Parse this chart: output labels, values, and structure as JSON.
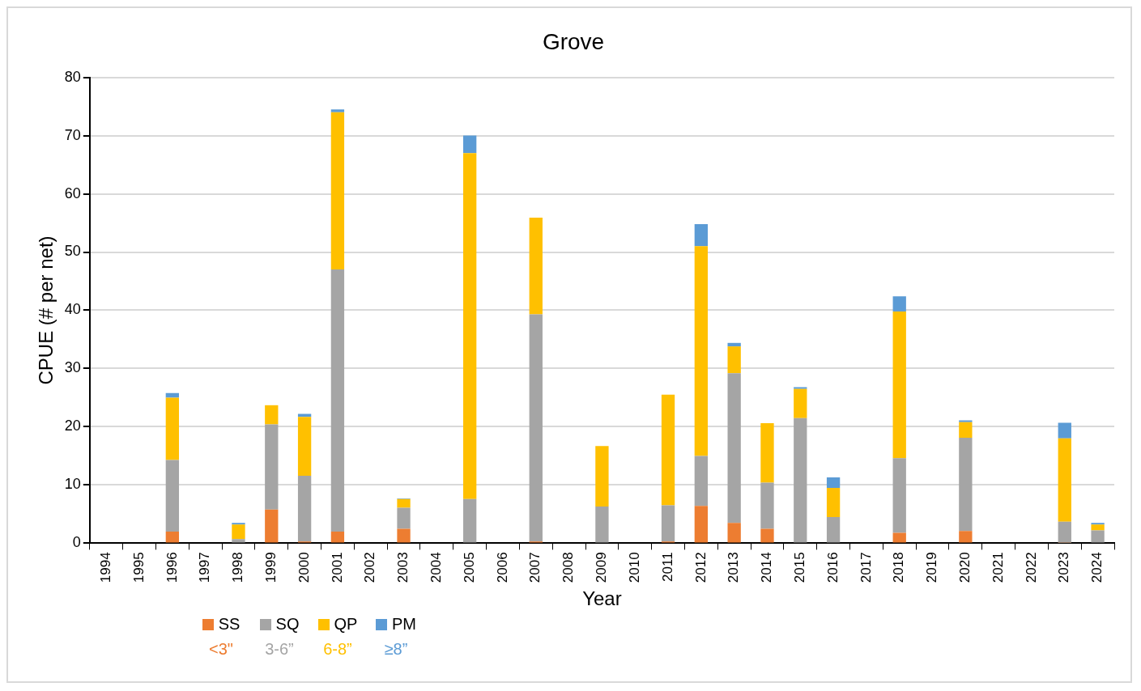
{
  "chart_data": {
    "type": "bar",
    "title": "Grove",
    "xlabel": "Year",
    "ylabel": "CPUE (# per net)",
    "categories": [
      "1994",
      "1995",
      "1996",
      "1997",
      "1998",
      "1999",
      "2000",
      "2001",
      "2002",
      "2003",
      "2004",
      "2005",
      "2006",
      "2007",
      "2008",
      "2009",
      "2010",
      "2011",
      "2012",
      "2013",
      "2014",
      "2015",
      "2016",
      "2017",
      "2018",
      "2019",
      "2020",
      "2021",
      "2022",
      "2023",
      "2024"
    ],
    "stacked": true,
    "series": [
      {
        "name": "SS",
        "color": "#ed7d31",
        "values": [
          null,
          null,
          2,
          null,
          0,
          5.8,
          0.3,
          2,
          null,
          2.5,
          null,
          0,
          null,
          0.3,
          null,
          0,
          null,
          0.3,
          6.4,
          3.5,
          2.5,
          0,
          0,
          null,
          1.8,
          null,
          2.1,
          null,
          null,
          0.1,
          0
        ]
      },
      {
        "name": "SQ",
        "color": "#a5a5a5",
        "values": [
          null,
          null,
          12.3,
          null,
          0.7,
          14.6,
          11.3,
          45,
          null,
          3.6,
          null,
          7.6,
          null,
          39,
          null,
          6.3,
          null,
          6.2,
          8.6,
          25.7,
          7.9,
          21.5,
          4.5,
          null,
          12.8,
          null,
          16,
          null,
          null,
          3.6,
          2.2
        ]
      },
      {
        "name": "QP",
        "color": "#ffc000",
        "values": [
          null,
          null,
          10.7,
          null,
          2.5,
          3.3,
          10.1,
          27,
          null,
          1.5,
          null,
          59.4,
          null,
          16.6,
          null,
          10.4,
          null,
          19,
          36,
          4.6,
          10.2,
          5,
          5,
          null,
          25.2,
          null,
          2.7,
          null,
          null,
          14.3,
          1
        ]
      },
      {
        "name": "PM",
        "color": "#5b9bd5",
        "values": [
          null,
          null,
          0.8,
          null,
          0.3,
          0,
          0.5,
          0.5,
          null,
          0.1,
          null,
          3,
          null,
          0,
          null,
          0,
          null,
          0,
          3.8,
          0.6,
          0,
          0.3,
          1.8,
          null,
          2.6,
          null,
          0.3,
          null,
          null,
          2.7,
          0.3
        ]
      }
    ],
    "annotations": [
      "<3\"",
      "3-6”",
      "6-8”",
      "≥8”"
    ],
    "ylim": [
      0,
      80
    ],
    "yticks": [
      0,
      10,
      20,
      30,
      40,
      50,
      60,
      70,
      80
    ],
    "grid": "y",
    "legend": "bottom"
  }
}
